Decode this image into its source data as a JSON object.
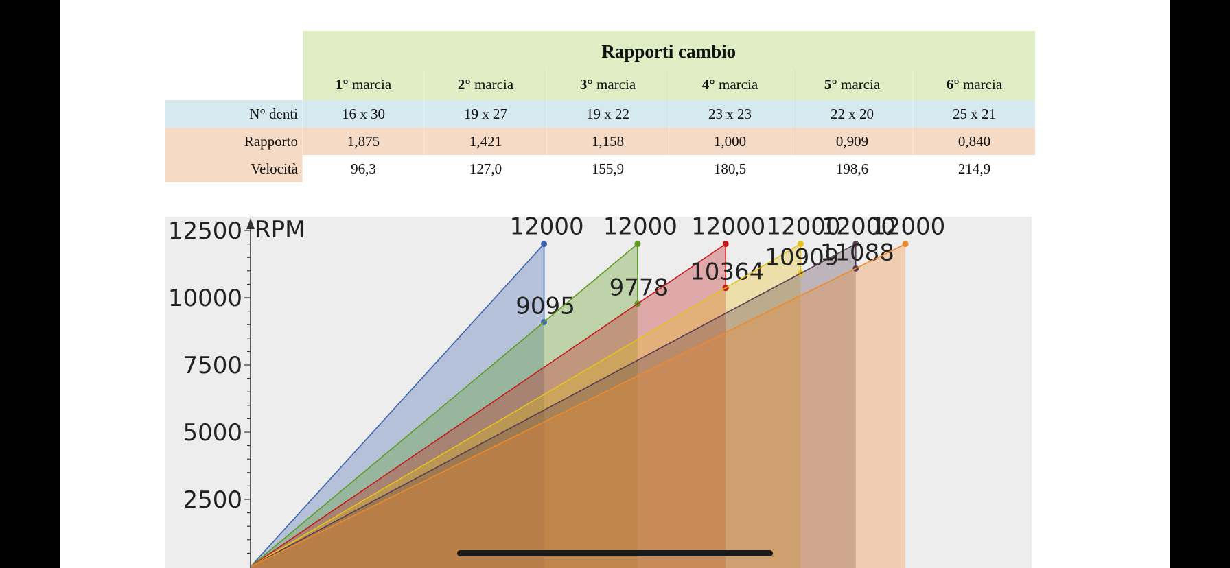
{
  "table": {
    "title": "Rapporti cambio",
    "gears": [
      {
        "num": "1°",
        "word": " marcia"
      },
      {
        "num": "2°",
        "word": " marcia"
      },
      {
        "num": "3°",
        "word": " marcia"
      },
      {
        "num": "4°",
        "word": " marcia"
      },
      {
        "num": "5°",
        "word": " marcia"
      },
      {
        "num": "6°",
        "word": " marcia"
      }
    ],
    "rows": [
      {
        "label": "N° denti",
        "values": [
          "16 x 30",
          "19 x 27",
          "19 x 22",
          "23 x 23",
          "22 x 20",
          "25 x 21"
        ]
      },
      {
        "label": "Rapporto",
        "values": [
          "1,875",
          "1,421",
          "1,158",
          "1,000",
          "0,909",
          "0,840"
        ]
      },
      {
        "label": "Velocità",
        "values": [
          "96,3",
          "127,0",
          "155,9",
          "180,5",
          "198,6",
          "214,9"
        ]
      }
    ]
  },
  "chart_data": {
    "type": "area",
    "ylabel": "RPM",
    "yticks": [
      2500,
      5000,
      7500,
      10000,
      12500
    ],
    "ylim": [
      0,
      13500
    ],
    "xlim": [
      0,
      230
    ],
    "grid": false,
    "series": [
      {
        "color": "#3a64ad",
        "points": [
          [
            0,
            0
          ],
          [
            96.3,
            12000
          ]
        ],
        "drop": [
          96.3,
          9095
        ],
        "labels": [
          "12000",
          "9095"
        ]
      },
      {
        "color": "#5d9a1f",
        "points": [
          [
            0,
            0
          ],
          [
            127.0,
            12000
          ]
        ],
        "drop": [
          127.0,
          9778
        ],
        "labels": [
          "12000",
          "9778"
        ]
      },
      {
        "color": "#c41a1a",
        "points": [
          [
            0,
            0
          ],
          [
            155.9,
            12000
          ]
        ],
        "drop": [
          155.9,
          10364
        ],
        "labels": [
          "12000",
          "10364"
        ]
      },
      {
        "color": "#e8c21c",
        "points": [
          [
            0,
            0
          ],
          [
            180.5,
            12000
          ]
        ],
        "drop": [
          180.5,
          10909
        ],
        "labels": [
          "12000",
          "10909"
        ]
      },
      {
        "color": "#5a3d52",
        "points": [
          [
            0,
            0
          ],
          [
            198.6,
            12000
          ]
        ],
        "drop": [
          198.6,
          11088
        ],
        "labels": [
          "12000",
          "11088"
        ]
      },
      {
        "color": "#ee8a2e",
        "points": [
          [
            0,
            0
          ],
          [
            214.9,
            12000
          ]
        ],
        "drop": null,
        "labels": [
          "12000"
        ]
      }
    ]
  }
}
